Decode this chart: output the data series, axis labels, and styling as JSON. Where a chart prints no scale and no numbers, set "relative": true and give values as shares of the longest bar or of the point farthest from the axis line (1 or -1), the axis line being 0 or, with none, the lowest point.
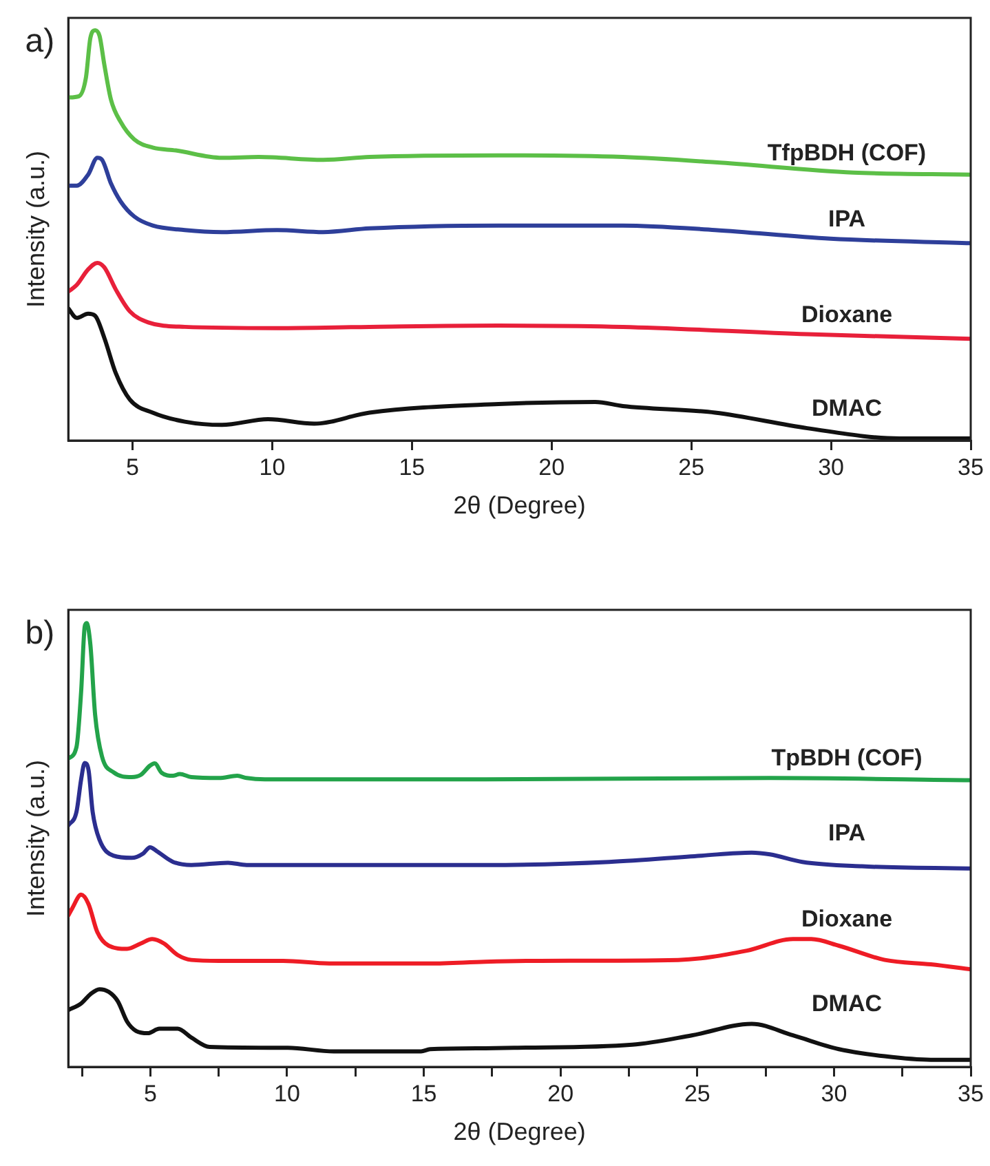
{
  "chart_data": [
    {
      "type": "line",
      "title": "a)",
      "xlabel": "2θ (Degree)",
      "ylabel": "Intensity (a.u.)",
      "xlim": [
        2.7,
        35
      ],
      "xticks": [
        5,
        10,
        15,
        20,
        25,
        30,
        35
      ],
      "relative": true,
      "marker": "none",
      "series": [
        {
          "name": "TfpBDH (COF)",
          "color": "#5cbf47",
          "x": [
            2.7,
            3.08,
            3.33,
            3.49,
            3.66,
            3.82,
            3.99,
            4.23,
            4.57,
            5.06,
            5.72,
            6.55,
            8.2,
            9.52,
            11.82,
            13.48,
            18.1,
            22.55,
            25.85,
            30.8,
            35
          ],
          "values": [
            0.836,
            0.839,
            0.884,
            0.981,
            1.0,
            0.986,
            0.916,
            0.83,
            0.777,
            0.734,
            0.714,
            0.707,
            0.689,
            0.691,
            0.684,
            0.691,
            0.695,
            0.691,
            0.678,
            0.653,
            0.648
          ]
        },
        {
          "name": "IPA",
          "color": "#2e3f9a",
          "x": [
            2.75,
            3.0,
            3.41,
            3.74,
            3.9,
            4.23,
            4.57,
            5.06,
            5.72,
            6.87,
            8.2,
            10.17,
            11.82,
            13.48,
            18.1,
            22.55,
            25.85,
            29.98,
            35
          ],
          "values": [
            0.621,
            0.621,
            0.648,
            0.689,
            0.685,
            0.626,
            0.583,
            0.546,
            0.524,
            0.513,
            0.508,
            0.513,
            0.508,
            0.517,
            0.524,
            0.524,
            0.513,
            0.492,
            0.481
          ]
        },
        {
          "name": "Dioxane",
          "color": "#e8203a",
          "x": [
            2.7,
            3.0,
            3.41,
            3.74,
            3.99,
            4.4,
            4.9,
            5.56,
            6.87,
            10.17,
            13.48,
            18.1,
            22.55,
            29.15,
            35
          ],
          "values": [
            0.363,
            0.379,
            0.417,
            0.433,
            0.422,
            0.368,
            0.315,
            0.288,
            0.277,
            0.274,
            0.277,
            0.28,
            0.277,
            0.259,
            0.248
          ]
        },
        {
          "name": "DMAC",
          "color": "#111111",
          "x": [
            2.7,
            3.0,
            3.41,
            3.66,
            3.99,
            4.4,
            4.9,
            5.72,
            6.87,
            8.2,
            9.85,
            11.5,
            13.48,
            18.1,
            21.56,
            22.55,
            25.85,
            29.15,
            32.45,
            35
          ],
          "values": [
            0.322,
            0.299,
            0.309,
            0.304,
            0.25,
            0.164,
            0.1,
            0.068,
            0.046,
            0.038,
            0.052,
            0.041,
            0.068,
            0.089,
            0.094,
            0.084,
            0.068,
            0.03,
            0.005,
            0.005
          ]
        }
      ]
    },
    {
      "type": "line",
      "title": "b)",
      "xlabel": "2θ (Degree)",
      "ylabel": "Intensity (a.u.)",
      "xlim": [
        2,
        35
      ],
      "xticks": [
        {
          "value": 2.5,
          "label": null
        },
        5,
        {
          "value": 7.5,
          "label": null
        },
        10,
        {
          "value": 12.5,
          "label": null
        },
        15,
        {
          "value": 17.5,
          "label": null
        },
        20,
        {
          "value": 22.5,
          "label": null
        },
        25,
        {
          "value": 27.5,
          "label": null
        },
        30,
        {
          "value": 32.5,
          "label": null
        },
        35
      ],
      "relative": true,
      "marker": "none",
      "series": [
        {
          "name": "TpBDH (COF)",
          "color": "#23a34a",
          "x": [
            2.0,
            2.3,
            2.47,
            2.6,
            2.67,
            2.81,
            2.98,
            3.23,
            3.65,
            4.32,
            4.65,
            4.99,
            5.16,
            5.41,
            5.83,
            6.08,
            6.5,
            7.51,
            8.18,
            8.52,
            9.19,
            17.25,
            27.66,
            35
          ],
          "values": [
            0.695,
            0.721,
            0.846,
            0.992,
            1.0,
            0.95,
            0.794,
            0.7,
            0.664,
            0.653,
            0.658,
            0.679,
            0.684,
            0.663,
            0.656,
            0.66,
            0.653,
            0.651,
            0.656,
            0.651,
            0.648,
            0.648,
            0.651,
            0.646
          ]
        },
        {
          "name": "IPA",
          "color": "#2b2e8f",
          "x": [
            2.0,
            2.3,
            2.47,
            2.6,
            2.74,
            2.89,
            3.14,
            3.65,
            4.32,
            4.74,
            4.99,
            5.24,
            5.83,
            6.5,
            7.84,
            8.52,
            17.25,
            21.78,
            25.14,
            26.99,
            27.66,
            28.84,
            31.02,
            35
          ],
          "values": [
            0.544,
            0.575,
            0.648,
            0.685,
            0.669,
            0.575,
            0.512,
            0.476,
            0.471,
            0.481,
            0.495,
            0.486,
            0.462,
            0.455,
            0.46,
            0.455,
            0.455,
            0.462,
            0.476,
            0.483,
            0.479,
            0.462,
            0.452,
            0.447
          ]
        },
        {
          "name": "Dioxane",
          "color": "#ee1c25",
          "x": [
            2.0,
            2.14,
            2.47,
            2.74,
            3.06,
            3.48,
            4.15,
            4.65,
            5.07,
            5.5,
            6.0,
            6.5,
            7.51,
            9.86,
            11.54,
            15.23,
            17.25,
            19.26,
            24.3,
            26.82,
            28.5,
            29.17,
            30.18,
            31.86,
            33.54,
            35
          ],
          "values": [
            0.341,
            0.357,
            0.388,
            0.367,
            0.304,
            0.273,
            0.266,
            0.278,
            0.288,
            0.278,
            0.252,
            0.241,
            0.239,
            0.239,
            0.233,
            0.233,
            0.237,
            0.239,
            0.241,
            0.262,
            0.288,
            0.288,
            0.273,
            0.241,
            0.231,
            0.22
          ]
        },
        {
          "name": "DMAC",
          "color": "#111111",
          "x": [
            2.0,
            2.47,
            2.81,
            3.14,
            3.48,
            3.81,
            4.15,
            4.48,
            4.91,
            5.33,
            6.0,
            6.5,
            7.17,
            10.03,
            11.71,
            14.9,
            15.23,
            17.25,
            18.42,
            22.62,
            24.8,
            26.99,
            28.5,
            30.18,
            31.86,
            33.54,
            35
          ],
          "values": [
            0.128,
            0.143,
            0.164,
            0.175,
            0.169,
            0.148,
            0.102,
            0.081,
            0.076,
            0.086,
            0.086,
            0.066,
            0.045,
            0.043,
            0.035,
            0.035,
            0.04,
            0.042,
            0.043,
            0.05,
            0.071,
            0.097,
            0.071,
            0.04,
            0.024,
            0.016,
            0.016
          ]
        }
      ]
    }
  ]
}
